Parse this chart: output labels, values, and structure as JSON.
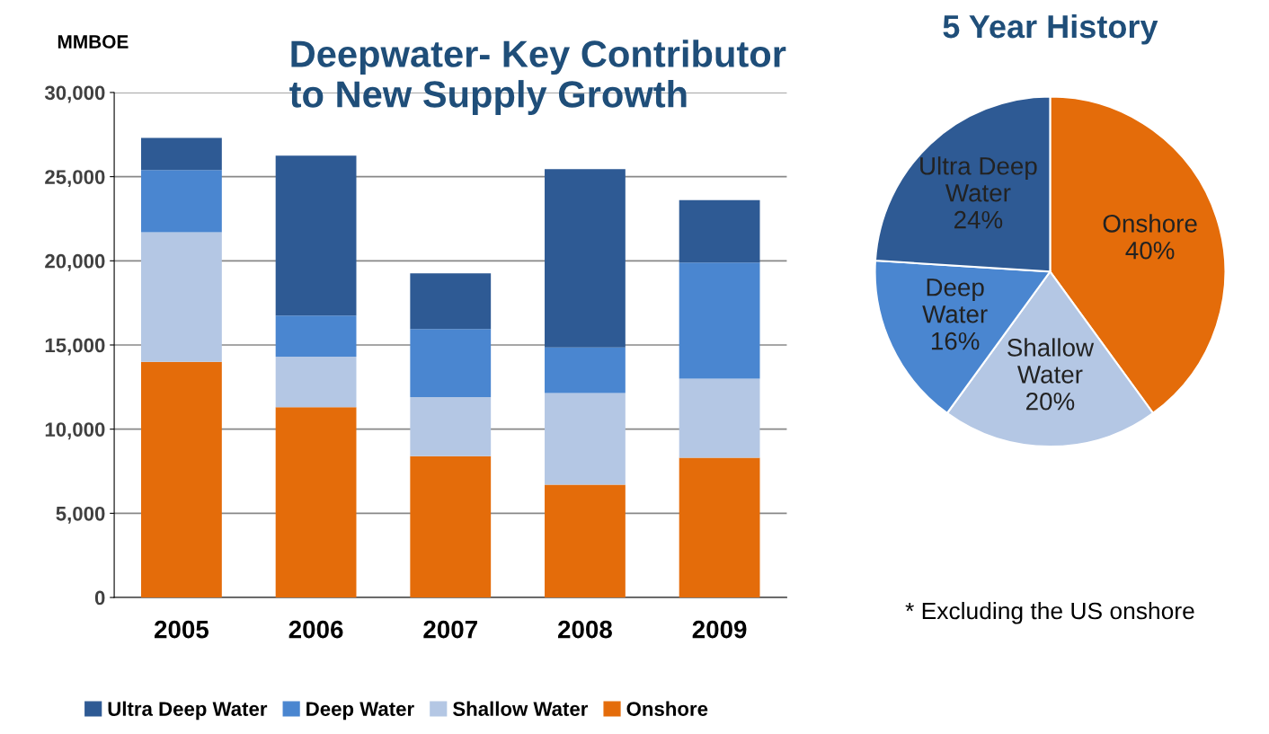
{
  "chart_data": [
    {
      "type": "bar",
      "title": "Deepwater- Key Contributor\nto New Supply Growth",
      "ylabel": "MMBOE",
      "stacked": true,
      "categories": [
        "2005",
        "2006",
        "2007",
        "2008",
        "2009"
      ],
      "series": [
        {
          "name": "Onshore",
          "color": "#e46c0a",
          "values": [
            14000,
            11300,
            8400,
            6700,
            8300
          ]
        },
        {
          "name": "Shallow Water",
          "color": "#b4c7e4",
          "values": [
            7700,
            3000,
            3500,
            5450,
            4700
          ]
        },
        {
          "name": "Deep Water",
          "color": "#4a86d0",
          "values": [
            3700,
            2450,
            4050,
            2700,
            6900
          ]
        },
        {
          "name": "Ultra Deep Water",
          "color": "#2e5a94",
          "values": [
            1900,
            9500,
            3300,
            10600,
            3700
          ]
        }
      ],
      "ylim": [
        0,
        30000
      ],
      "yticks": [
        0,
        {
          "value": 5000,
          "label": "5,000"
        },
        {
          "value": 10000,
          "label": "10,000"
        },
        {
          "value": 15000,
          "label": "15,000"
        },
        {
          "value": 20000,
          "label": "20,000"
        },
        {
          "value": 25000,
          "label": "25,000"
        },
        {
          "value": 30000,
          "label": "30,000"
        }
      ],
      "grid": "y",
      "legend": "bottom"
    },
    {
      "type": "pie",
      "title": "5 Year History",
      "categories": [
        "Onshore",
        "Shallow\nWater",
        "Deep\nWater",
        "Ultra Deep\nWater"
      ],
      "values": [
        40,
        20,
        16,
        24
      ],
      "value_labels": [
        "40%",
        "20%",
        "16%",
        "24%"
      ],
      "colors": [
        "#e46c0a",
        "#b4c7e4",
        "#4a86d0",
        "#2e5a94"
      ],
      "annotations": [
        "* Excluding the US onshore"
      ]
    }
  ]
}
